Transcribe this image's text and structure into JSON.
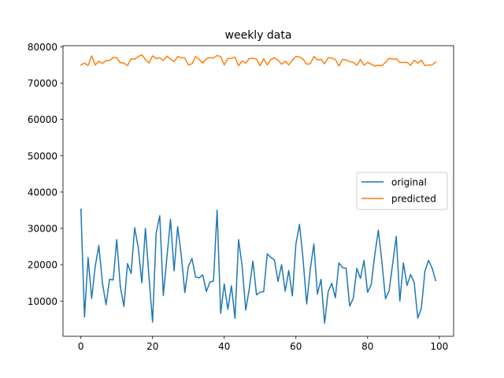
{
  "chart_data": {
    "type": "line",
    "title": "weekly data",
    "xlabel": "",
    "ylabel": "",
    "xlim": [
      -5,
      104
    ],
    "ylim": [
      300,
      80300
    ],
    "xticks": [
      0,
      20,
      40,
      60,
      80,
      100
    ],
    "yticks": [
      10000,
      20000,
      30000,
      40000,
      50000,
      60000,
      70000,
      80000
    ],
    "grid": false,
    "legend_position": "center-right",
    "x": [
      0,
      1,
      2,
      3,
      4,
      5,
      6,
      7,
      8,
      9,
      10,
      11,
      12,
      13,
      14,
      15,
      16,
      17,
      18,
      19,
      20,
      21,
      22,
      23,
      24,
      25,
      26,
      27,
      28,
      29,
      30,
      31,
      32,
      33,
      34,
      35,
      36,
      37,
      38,
      39,
      40,
      41,
      42,
      43,
      44,
      45,
      46,
      47,
      48,
      49,
      50,
      51,
      52,
      53,
      54,
      55,
      56,
      57,
      58,
      59,
      60,
      61,
      62,
      63,
      64,
      65,
      66,
      67,
      68,
      69,
      70,
      71,
      72,
      73,
      74,
      75,
      76,
      77,
      78,
      79,
      80,
      81,
      82,
      83,
      84,
      85,
      86,
      87,
      88,
      89,
      90,
      91,
      92,
      93,
      94,
      95,
      96,
      97,
      98,
      99
    ],
    "series": [
      {
        "name": "original",
        "color": "#1f77b4",
        "values": [
          35300,
          5600,
          22000,
          10700,
          19600,
          25300,
          15000,
          9000,
          16000,
          15800,
          26900,
          14000,
          8500,
          20300,
          17600,
          30200,
          24700,
          15000,
          30000,
          16600,
          4200,
          28700,
          33500,
          11500,
          22000,
          32500,
          18300,
          30500,
          22600,
          12300,
          19600,
          21700,
          16600,
          16400,
          17200,
          12600,
          15200,
          15500,
          35000,
          6600,
          14700,
          7700,
          14200,
          5200,
          26900,
          19500,
          7500,
          13500,
          21000,
          11700,
          12400,
          12600,
          23000,
          22000,
          21300,
          15400,
          20000,
          12700,
          18400,
          11400,
          25700,
          31100,
          21400,
          9200,
          18700,
          25700,
          11900,
          16000,
          3900,
          12600,
          14900,
          10900,
          20500,
          19200,
          19000,
          8600,
          10700,
          19000,
          16200,
          21200,
          12400,
          14500,
          22700,
          29500,
          20700,
          10600,
          12800,
          20300,
          27800,
          10000,
          20500,
          14300,
          17300,
          15100,
          5300,
          8000,
          18200,
          21200,
          19100,
          15600
        ]
      },
      {
        "name": "predicted",
        "color": "#ff7f0e",
        "values": [
          75000,
          75500,
          74800,
          77500,
          75000,
          76000,
          75400,
          76200,
          76200,
          77000,
          77000,
          75600,
          75500,
          74800,
          76700,
          76600,
          77300,
          77800,
          76500,
          75500,
          77500,
          76700,
          77000,
          76200,
          77400,
          76600,
          75900,
          77300,
          77000,
          76900,
          75000,
          75300,
          77300,
          76500,
          75500,
          76700,
          77000,
          76900,
          77600,
          77300,
          75000,
          76800,
          76800,
          77200,
          74800,
          76100,
          75500,
          76800,
          76800,
          76600,
          74800,
          76700,
          75000,
          76500,
          77000,
          76300,
          75200,
          76000,
          75000,
          76300,
          77300,
          77200,
          76600,
          75200,
          75300,
          77300,
          76400,
          76500,
          75300,
          77000,
          76900,
          76500,
          74700,
          76500,
          76400,
          75900,
          75700,
          74900,
          76500,
          74900,
          75700,
          75200,
          74700,
          74900,
          74800,
          75700,
          76800,
          76600,
          76700,
          75700,
          75700,
          75700,
          74900,
          76300,
          75500,
          76300,
          74800,
          75000,
          75000,
          75800
        ]
      }
    ]
  }
}
